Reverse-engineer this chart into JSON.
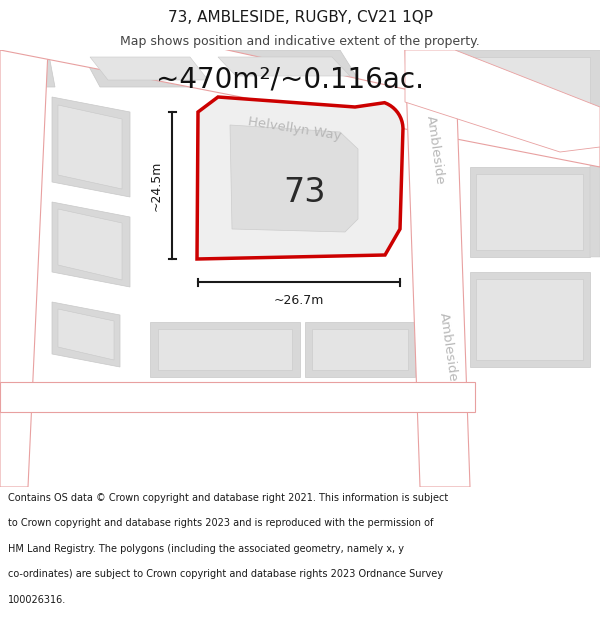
{
  "title": "73, AMBLESIDE, RUGBY, CV21 1QP",
  "subtitle": "Map shows position and indicative extent of the property.",
  "area_text": "~470m²/~0.116ac.",
  "label_73": "73",
  "dim_height": "~24.5m",
  "dim_width": "~26.7m",
  "street_helvellyn": "Helvellyn Way",
  "street_ambleside_top": "Ambleside",
  "street_ambleside_bot": "Ambleside",
  "footer_lines": [
    "Contains OS data © Crown copyright and database right 2021. This information is subject",
    "to Crown copyright and database rights 2023 and is reproduced with the permission of",
    "HM Land Registry. The polygons (including the associated geometry, namely x, y",
    "co-ordinates) are subject to Crown copyright and database rights 2023 Ordnance Survey",
    "100026316."
  ],
  "map_bg": "#f2f0ed",
  "road_fill": "#ffffff",
  "road_outline": "#e8a0a0",
  "block_fill": "#d8d8d8",
  "block_stroke": "#c8c8c8",
  "block_inner_fill": "#e4e4e4",
  "plot_fill": "#efefef",
  "plot_outline": "#cc0000",
  "dim_color": "#1a1a1a",
  "street_color": "#b8b8b8",
  "title_color": "#1a1a1a",
  "footer_color": "#1a1a1a",
  "white": "#ffffff",
  "fig_bg": "#f5f5f0"
}
